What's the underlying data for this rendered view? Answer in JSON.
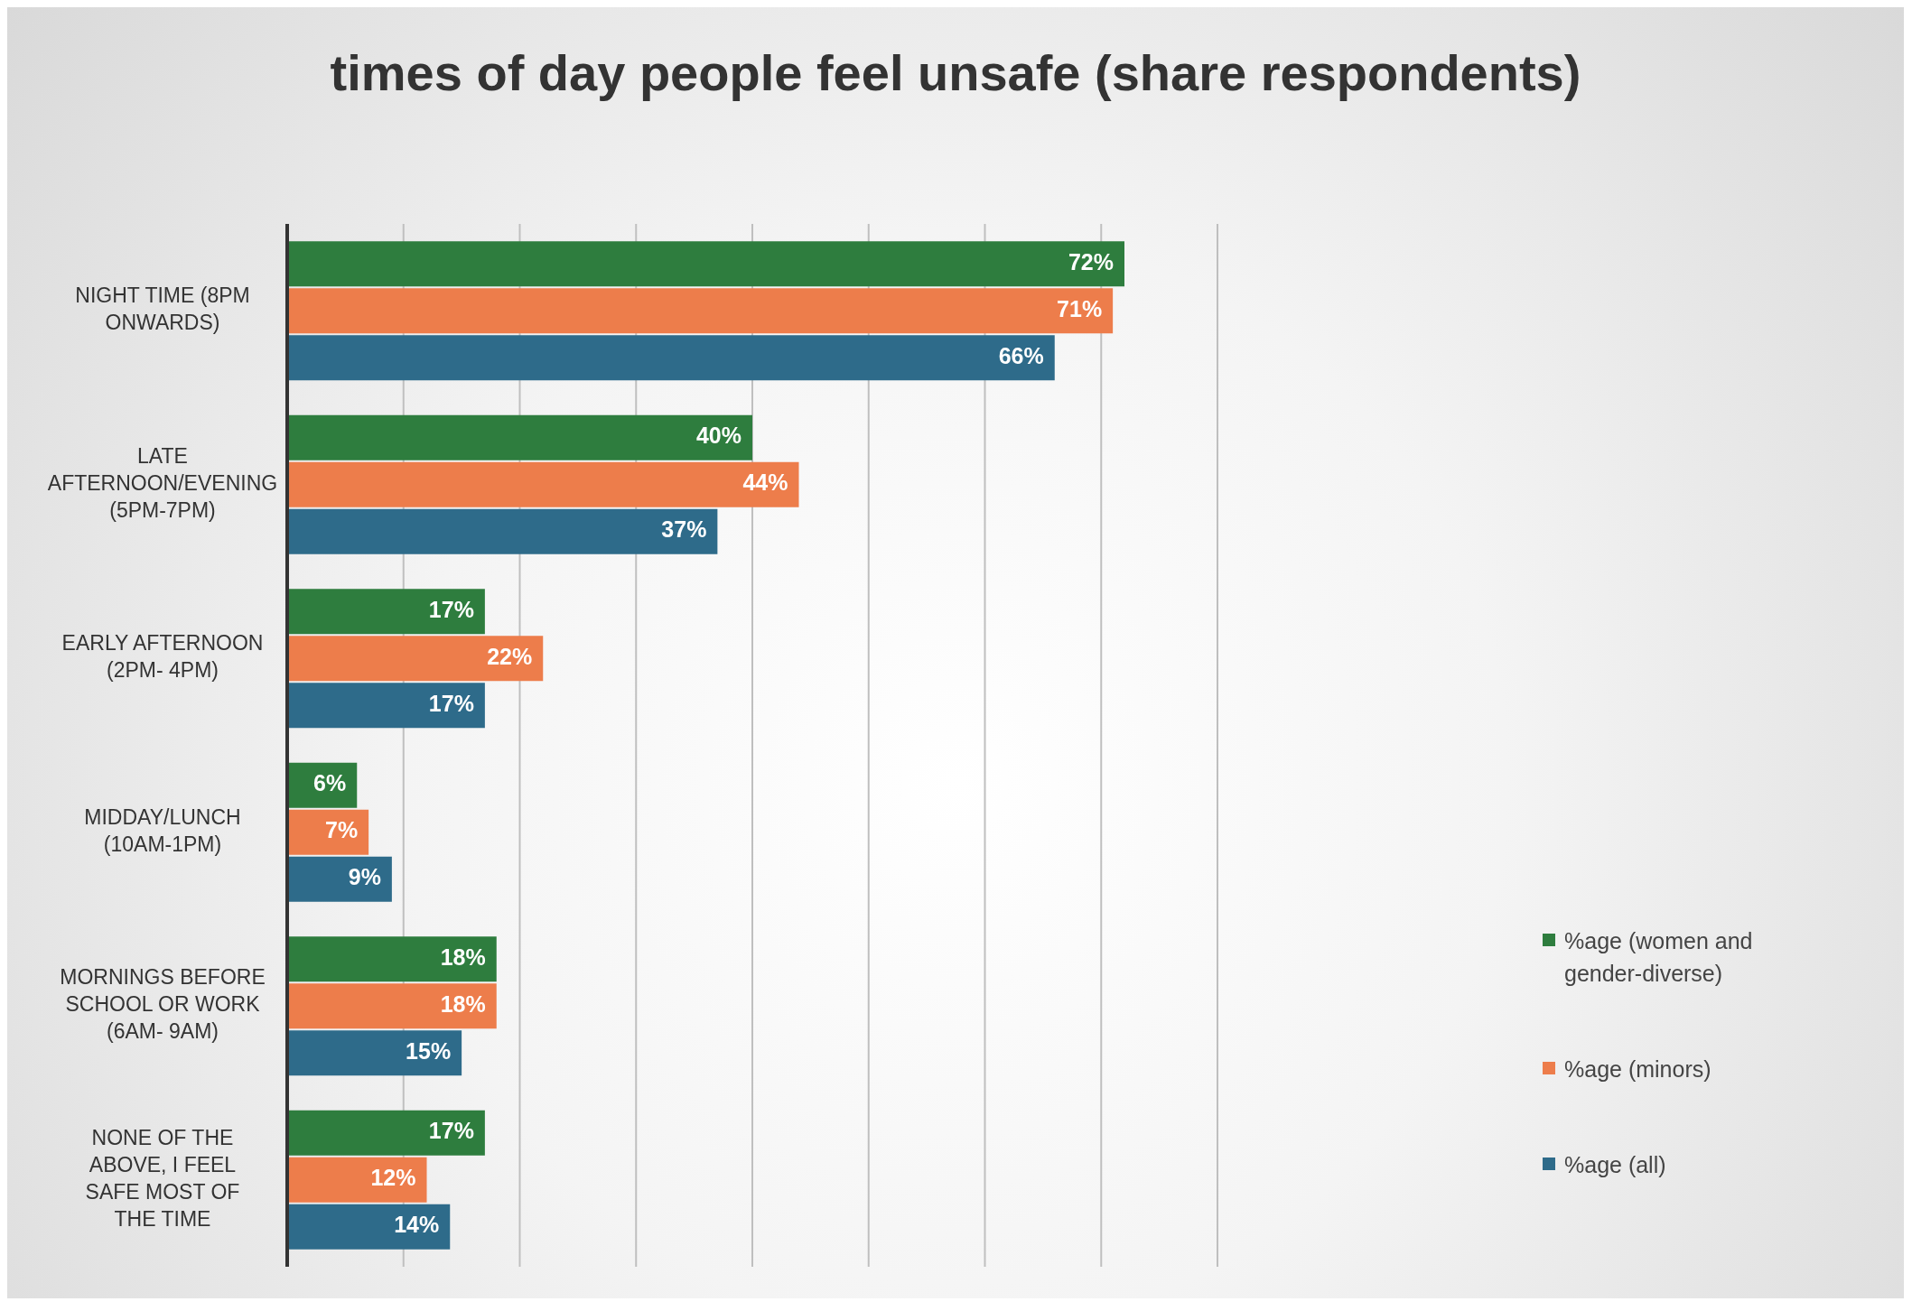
{
  "chart_data": {
    "type": "bar",
    "orientation": "horizontal",
    "title": "times of day people feel unsafe (share respondents)",
    "categories": [
      "NIGHT TIME (8PM ONWARDS)",
      "LATE AFTERNOON/EVENING (5PM-7PM)",
      "EARLY AFTERNOON (2PM- 4PM)",
      "MIDDAY/LUNCH (10AM-1PM)",
      "MORNINGS BEFORE SCHOOL OR WORK (6AM- 9AM)",
      "NONE OF THE ABOVE, I FEEL SAFE MOST OF THE TIME"
    ],
    "series": [
      {
        "name": "%age (women and gender-diverse)",
        "color": "#2e7d3e",
        "values": [
          72,
          40,
          17,
          6,
          18,
          17
        ],
        "value_labels": [
          "72%",
          "40%",
          "17%",
          "6%",
          "18%",
          "17%"
        ]
      },
      {
        "name": "%age (minors)",
        "color": "#ed7d4b",
        "values": [
          71,
          44,
          22,
          7,
          18,
          12
        ],
        "value_labels": [
          "71%",
          "44%",
          "22%",
          "7%",
          "18%",
          "12%"
        ]
      },
      {
        "name": "%age (all)",
        "color": "#2e6b8a",
        "values": [
          66,
          37,
          17,
          9,
          15,
          14
        ],
        "value_labels": [
          "66%",
          "37%",
          "17%",
          "9%",
          "15%",
          "14%"
        ]
      }
    ],
    "xlim": [
      0,
      80
    ],
    "xticks": [
      {
        "value": 0,
        "label": null
      },
      {
        "value": 10,
        "label": null
      },
      {
        "value": 20,
        "label": null
      },
      {
        "value": 30,
        "label": null
      },
      {
        "value": 40,
        "label": null
      },
      {
        "value": 50,
        "label": null
      },
      {
        "value": 60,
        "label": null
      },
      {
        "value": 70,
        "label": null
      },
      {
        "value": 80,
        "label": null
      }
    ],
    "grid": "x",
    "tick_labels": "y",
    "legend": "bottom right"
  }
}
